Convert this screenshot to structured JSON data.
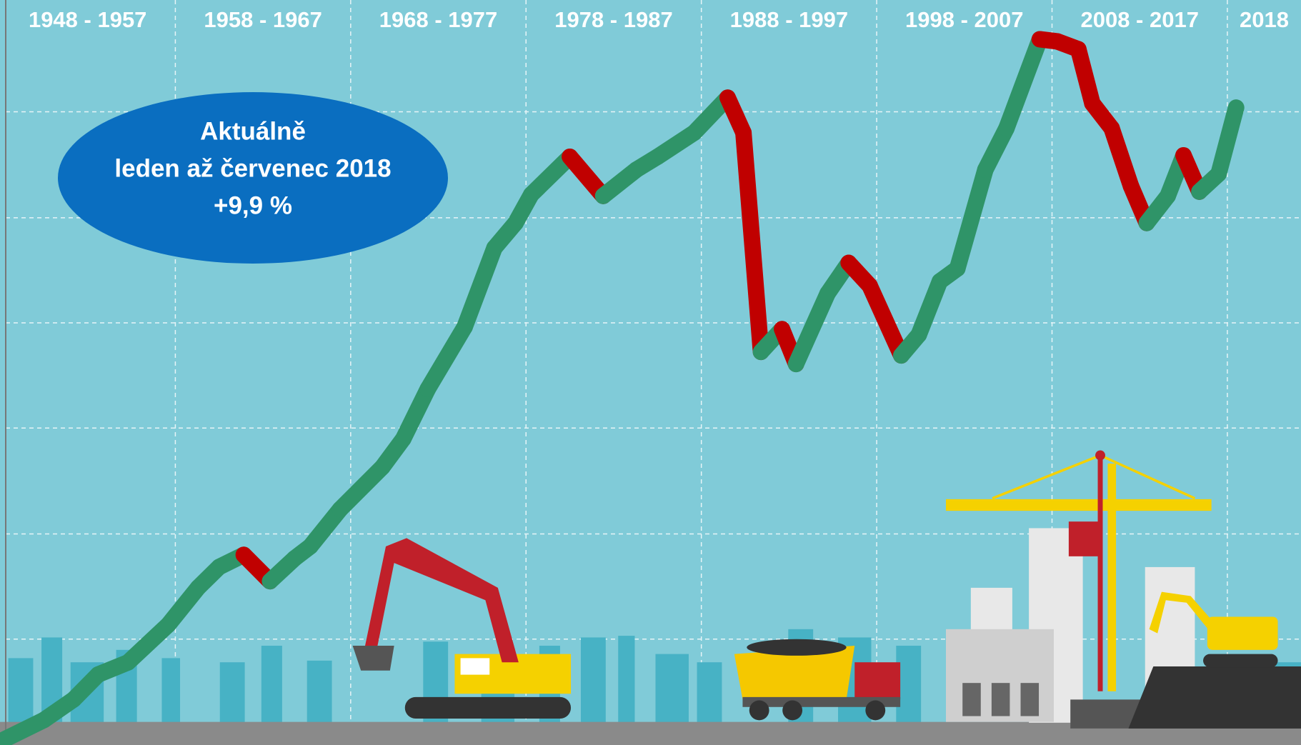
{
  "chart_data": {
    "type": "line",
    "x": [
      1948.1,
      1950.5,
      1952.2,
      1953.6,
      1955.3,
      1957.6,
      1959.3,
      1960.5,
      1961.9,
      1963.4,
      1964.8,
      1965.7,
      1967.4,
      1969.8,
      1971.0,
      1972.4,
      1974.5,
      1976.2,
      1977.4,
      1978.3,
      1980.5,
      1982.4,
      1984.3,
      1985.5,
      1987.6,
      1989.5,
      1990.4,
      1991.4,
      1992.6,
      1993.4,
      1995.2,
      1996.4,
      1997.6,
      1999.4,
      2000.4,
      2001.6,
      2002.6,
      2004.2,
      2005.4,
      2007.3,
      2008.3,
      2009.5,
      2010.3,
      2011.4,
      2012.5,
      2013.4,
      2014.6,
      2015.5,
      2016.4,
      2017.5,
      2018.5
    ],
    "values": [
      0.6,
      3.5,
      6.4,
      9.9,
      11.6,
      16.9,
      22.1,
      25.0,
      26.7,
      23.0,
      26.2,
      27.9,
      33.1,
      39.0,
      43.0,
      50.0,
      58.7,
      69.8,
      73.3,
      77.3,
      82.6,
      77.1,
      80.8,
      82.6,
      86.0,
      90.9,
      86.0,
      55.2,
      58.4,
      53.5,
      63.4,
      67.7,
      64.5,
      54.7,
      57.6,
      65.1,
      66.9,
      80.8,
      86.6,
      99.1,
      98.8,
      97.7,
      90.1,
      86.6,
      78.5,
      73.3,
      77.1,
      82.8,
      77.7,
      80.2,
      89.5
    ],
    "rise_color": "#2f9468",
    "fall_color": "#c00000",
    "xlim": [
      1948,
      2022.2
    ],
    "ylim": [
      0,
      100
    ],
    "xticks": [
      {
        "value": 1948,
        "label": "1948 - 1957"
      },
      {
        "value": 1958,
        "label": "1958 - 1967"
      },
      {
        "value": 1968,
        "label": "1968 - 1977"
      },
      {
        "value": 1978,
        "label": "1978 - 1987"
      },
      {
        "value": 1988,
        "label": "1988 - 1997"
      },
      {
        "value": 1998,
        "label": "1998 - 2007"
      },
      {
        "value": 2008,
        "label": "2008 - 2017"
      },
      {
        "value": 2018,
        "label": "2018"
      }
    ],
    "annotation": [
      "Aktuálně",
      "leden až červenec 2018",
      "+9,9 %"
    ]
  }
}
